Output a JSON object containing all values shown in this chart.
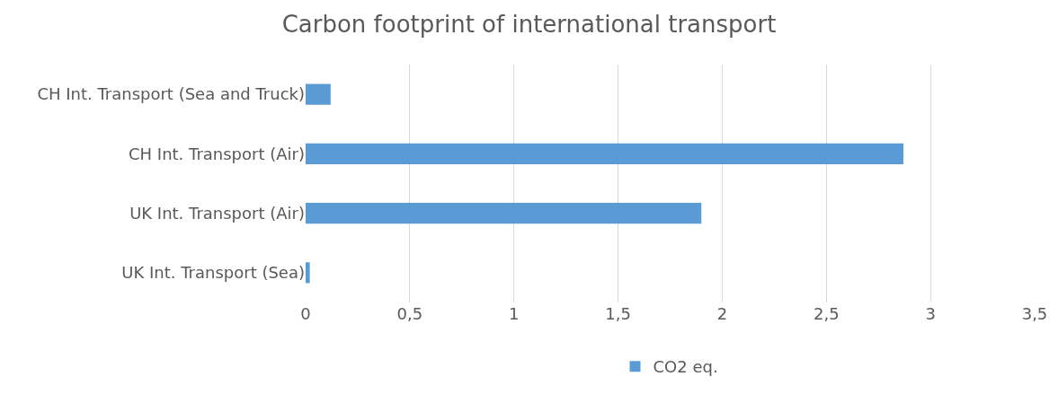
{
  "chart_data": {
    "type": "bar",
    "orientation": "horizontal",
    "title": "Carbon footprint of international transport",
    "categories": [
      "CH Int. Transport (Sea and Truck)",
      "CH Int. Transport (Air)",
      "UK Int. Transport (Air)",
      "UK Int. Transport (Sea)"
    ],
    "series": [
      {
        "name": "CO2 eq.",
        "color": "#5b9bd5",
        "values": [
          0.12,
          2.87,
          1.9,
          0.02
        ]
      }
    ],
    "xlim": [
      0,
      3.5
    ],
    "xticks": [
      0,
      {
        "value": 0.5,
        "label": "0,5"
      },
      1,
      {
        "value": 1.5,
        "label": "1,5"
      },
      2,
      {
        "value": 2.5,
        "label": "2,5"
      },
      3,
      {
        "value": 3.5,
        "label": "3,5"
      }
    ],
    "grid": "x",
    "legend": "bottom"
  }
}
